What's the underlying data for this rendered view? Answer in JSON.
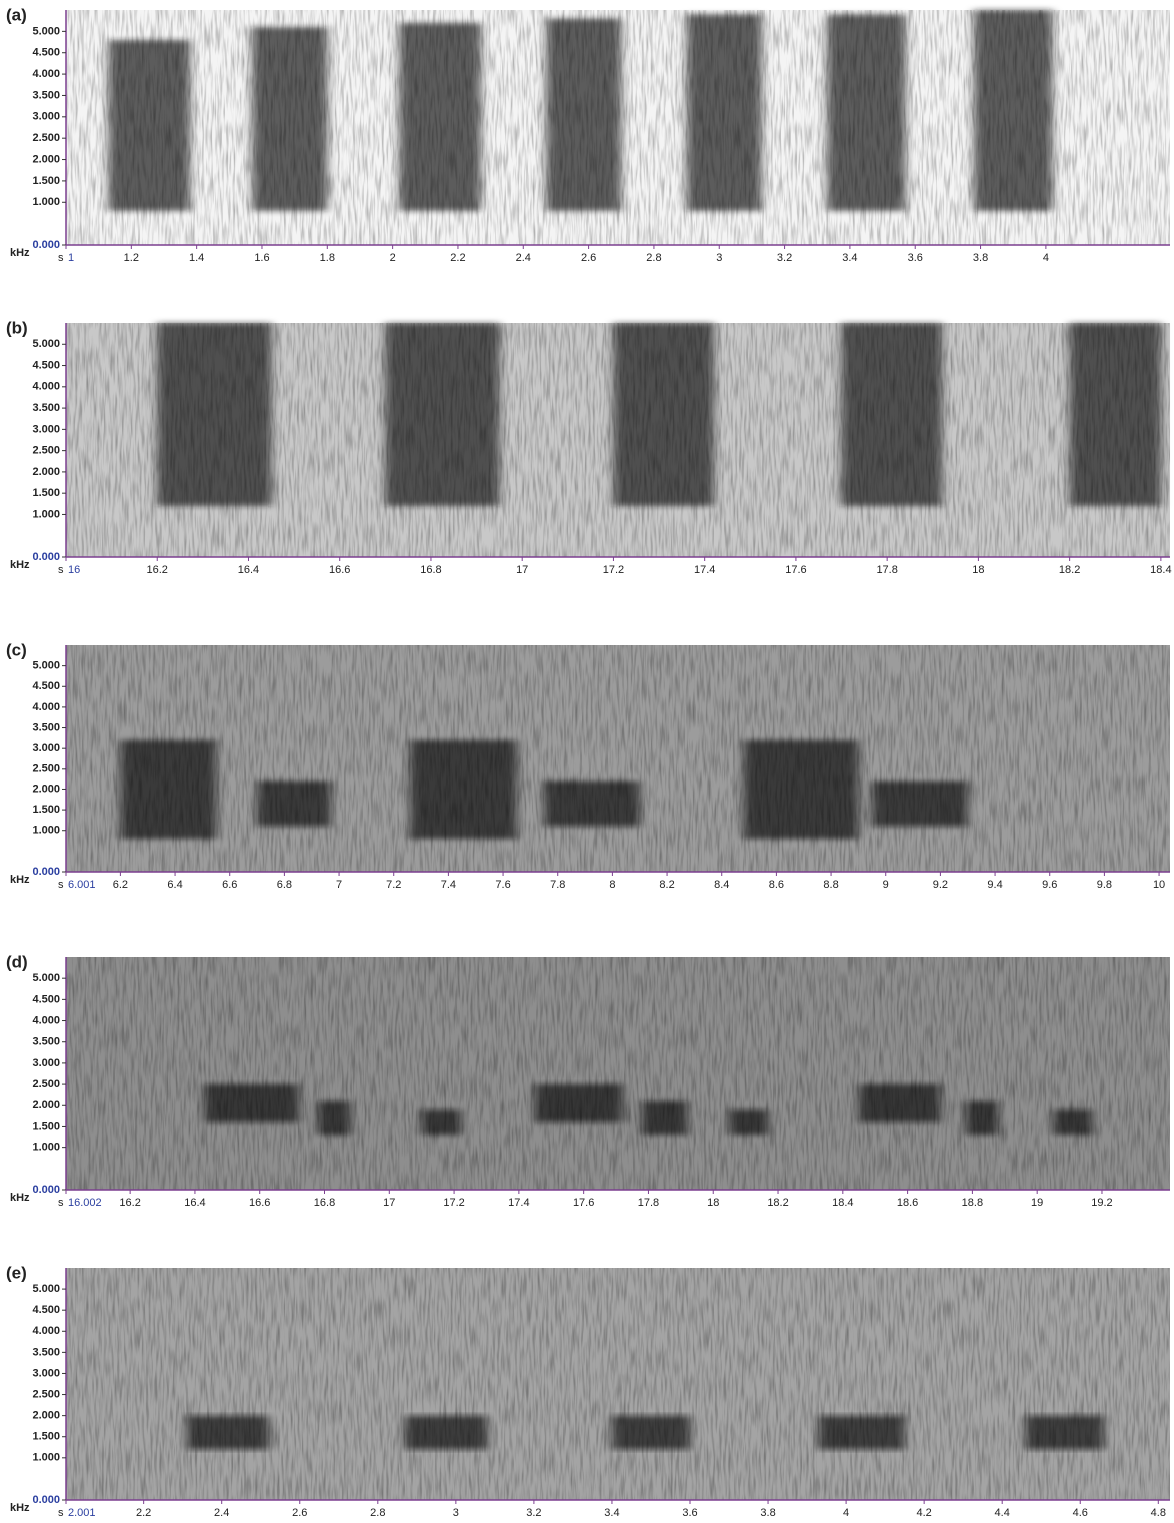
{
  "chart_data": [
    {
      "type": "spectrogram",
      "title": "(a)",
      "x_unit": "s",
      "y_unit": "kHz",
      "background": "#f4f4f4",
      "color": "#1a1a1a",
      "xlim": [
        1,
        4.38
      ],
      "xticks": [
        1,
        1.2,
        1.4,
        1.6,
        1.8,
        2,
        2.2,
        2.4,
        2.6,
        2.8,
        3,
        3.2,
        3.4,
        3.6,
        3.8,
        4
      ],
      "ylim": [
        0,
        5.5
      ],
      "yticks": [
        {
          "value": 0,
          "label": "0.000"
        },
        {
          "value": 1,
          "label": "1.000"
        },
        {
          "value": 1.5,
          "label": "1.500"
        },
        {
          "value": 2,
          "label": "2.000"
        },
        {
          "value": 2.5,
          "label": "2.500"
        },
        {
          "value": 3,
          "label": "3.000"
        },
        {
          "value": 3.5,
          "label": "3.500"
        },
        {
          "value": 4,
          "label": "4.000"
        },
        {
          "value": 4.5,
          "label": "4.500"
        },
        {
          "value": 5,
          "label": "5.000"
        }
      ],
      "segments": [
        {
          "start": 1.13,
          "end": 1.38,
          "low": 0.8,
          "high": 4.8
        },
        {
          "start": 1.57,
          "end": 1.8,
          "low": 0.8,
          "high": 5.1
        },
        {
          "start": 2.02,
          "end": 2.27,
          "low": 0.8,
          "high": 5.2
        },
        {
          "start": 2.47,
          "end": 2.7,
          "low": 0.8,
          "high": 5.3
        },
        {
          "start": 2.9,
          "end": 3.13,
          "low": 0.8,
          "high": 5.4
        },
        {
          "start": 3.33,
          "end": 3.57,
          "low": 0.8,
          "high": 5.4
        },
        {
          "start": 3.78,
          "end": 4.02,
          "low": 0.8,
          "high": 5.5
        }
      ]
    },
    {
      "type": "spectrogram",
      "title": "(b)",
      "x_unit": "s",
      "y_unit": "kHz",
      "background": "#c8c8c8",
      "color": "#1a1a1a",
      "xlim": [
        16,
        18.42
      ],
      "xticks": [
        16,
        16.2,
        16.4,
        16.6,
        16.8,
        17,
        17.2,
        17.4,
        17.6,
        17.8,
        18,
        18.2,
        18.4
      ],
      "ylim": [
        0,
        5.5
      ],
      "yticks": [
        {
          "value": 0,
          "label": "0.000"
        },
        {
          "value": 1,
          "label": "1.000"
        },
        {
          "value": 1.5,
          "label": "1.500"
        },
        {
          "value": 2,
          "label": "2.000"
        },
        {
          "value": 2.5,
          "label": "2.500"
        },
        {
          "value": 3,
          "label": "3.000"
        },
        {
          "value": 3.5,
          "label": "3.500"
        },
        {
          "value": 4,
          "label": "4.000"
        },
        {
          "value": 4.5,
          "label": "4.500"
        },
        {
          "value": 5,
          "label": "5.000"
        }
      ],
      "segments": [
        {
          "start": 16.2,
          "end": 16.45,
          "low": 1.2,
          "high": 5.5
        },
        {
          "start": 16.7,
          "end": 16.95,
          "low": 1.2,
          "high": 5.5
        },
        {
          "start": 17.2,
          "end": 17.42,
          "low": 1.2,
          "high": 5.5
        },
        {
          "start": 17.7,
          "end": 17.92,
          "low": 1.2,
          "high": 5.5
        },
        {
          "start": 18.2,
          "end": 18.4,
          "low": 1.2,
          "high": 5.5
        }
      ]
    },
    {
      "type": "spectrogram",
      "title": "(c)",
      "x_unit": "s",
      "y_unit": "kHz",
      "background": "#9c9c9c",
      "color": "#141414",
      "xlim": [
        6.001,
        10.04
      ],
      "xticks": [
        6.001,
        6.2,
        6.4,
        6.6,
        6.8,
        7,
        7.2,
        7.4,
        7.6,
        7.8,
        8,
        8.2,
        8.4,
        8.6,
        8.8,
        9,
        9.2,
        9.4,
        9.6,
        9.8,
        10
      ],
      "ylim": [
        0,
        5.5
      ],
      "yticks": [
        {
          "value": 0,
          "label": "0.000"
        },
        {
          "value": 1,
          "label": "1.000"
        },
        {
          "value": 1.5,
          "label": "1.500"
        },
        {
          "value": 2,
          "label": "2.000"
        },
        {
          "value": 2.5,
          "label": "2.500"
        },
        {
          "value": 3,
          "label": "3.000"
        },
        {
          "value": 3.5,
          "label": "3.500"
        },
        {
          "value": 4,
          "label": "4.000"
        },
        {
          "value": 4.5,
          "label": "4.500"
        },
        {
          "value": 5,
          "label": "5.000"
        }
      ],
      "segments": [
        {
          "start": 6.2,
          "end": 6.55,
          "low": 0.8,
          "high": 3.2
        },
        {
          "start": 6.7,
          "end": 6.97,
          "low": 1.1,
          "high": 2.2
        },
        {
          "start": 7.26,
          "end": 7.65,
          "low": 0.8,
          "high": 3.2
        },
        {
          "start": 7.75,
          "end": 8.1,
          "low": 1.1,
          "high": 2.2
        },
        {
          "start": 8.48,
          "end": 8.9,
          "low": 0.8,
          "high": 3.2
        },
        {
          "start": 8.95,
          "end": 9.3,
          "low": 1.1,
          "high": 2.2
        }
      ]
    },
    {
      "type": "spectrogram",
      "title": "(d)",
      "x_unit": "s",
      "y_unit": "kHz",
      "background": "#8e8e8e",
      "color": "#141414",
      "xlim": [
        16.002,
        19.41
      ],
      "xticks": [
        16.002,
        16.2,
        16.4,
        16.6,
        16.8,
        17,
        17.2,
        17.4,
        17.6,
        17.8,
        18,
        18.2,
        18.4,
        18.6,
        18.8,
        19,
        19.2
      ],
      "ylim": [
        0,
        5.5
      ],
      "yticks": [
        {
          "value": 0,
          "label": "0.000"
        },
        {
          "value": 1,
          "label": "1.000"
        },
        {
          "value": 1.5,
          "label": "1.500"
        },
        {
          "value": 2,
          "label": "2.000"
        },
        {
          "value": 2.5,
          "label": "2.500"
        },
        {
          "value": 3,
          "label": "3.000"
        },
        {
          "value": 3.5,
          "label": "3.500"
        },
        {
          "value": 4,
          "label": "4.000"
        },
        {
          "value": 4.5,
          "label": "4.500"
        },
        {
          "value": 5,
          "label": "5.000"
        }
      ],
      "segments": [
        {
          "start": 16.43,
          "end": 16.72,
          "low": 1.6,
          "high": 2.5
        },
        {
          "start": 16.78,
          "end": 16.88,
          "low": 1.3,
          "high": 2.1
        },
        {
          "start": 17.1,
          "end": 17.22,
          "low": 1.3,
          "high": 1.9
        },
        {
          "start": 17.45,
          "end": 17.72,
          "low": 1.6,
          "high": 2.5
        },
        {
          "start": 17.78,
          "end": 17.92,
          "low": 1.3,
          "high": 2.1
        },
        {
          "start": 18.05,
          "end": 18.17,
          "low": 1.3,
          "high": 1.9
        },
        {
          "start": 18.45,
          "end": 18.7,
          "low": 1.6,
          "high": 2.5
        },
        {
          "start": 18.78,
          "end": 18.88,
          "low": 1.3,
          "high": 2.1
        },
        {
          "start": 19.05,
          "end": 19.17,
          "low": 1.3,
          "high": 1.9
        }
      ]
    },
    {
      "type": "spectrogram",
      "title": "(e)",
      "x_unit": "s",
      "y_unit": "kHz",
      "background": "#a4a4a4",
      "color": "#101010",
      "xlim": [
        2.001,
        4.83
      ],
      "xticks": [
        2.001,
        2.2,
        2.4,
        2.6,
        2.8,
        3,
        3.2,
        3.4,
        3.6,
        3.8,
        4,
        4.2,
        4.4,
        4.6,
        4.8
      ],
      "ylim": [
        0,
        5.5
      ],
      "yticks": [
        {
          "value": 0,
          "label": "0.000"
        },
        {
          "value": 1,
          "label": "1.000"
        },
        {
          "value": 1.5,
          "label": "1.500"
        },
        {
          "value": 2,
          "label": "2.000"
        },
        {
          "value": 2.5,
          "label": "2.500"
        },
        {
          "value": 3,
          "label": "3.000"
        },
        {
          "value": 3.5,
          "label": "3.500"
        },
        {
          "value": 4,
          "label": "4.000"
        },
        {
          "value": 4.5,
          "label": "4.500"
        },
        {
          "value": 5,
          "label": "5.000"
        }
      ],
      "segments": [
        {
          "start": 2.31,
          "end": 2.52,
          "low": 1.2,
          "high": 2.0
        },
        {
          "start": 2.87,
          "end": 3.08,
          "low": 1.2,
          "high": 2.0
        },
        {
          "start": 3.4,
          "end": 3.6,
          "low": 1.2,
          "high": 2.0
        },
        {
          "start": 3.93,
          "end": 4.15,
          "low": 1.2,
          "high": 2.0
        },
        {
          "start": 4.46,
          "end": 4.66,
          "low": 1.2,
          "high": 2.0
        }
      ]
    }
  ]
}
